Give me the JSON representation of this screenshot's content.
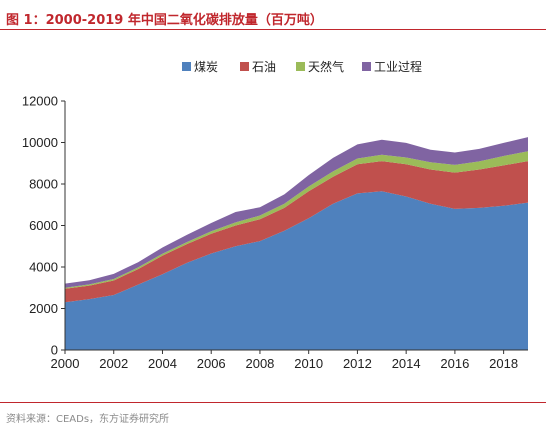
{
  "figure": {
    "title": "图 1：2000-2019 年中国二氧化碳排放量（百万吨）",
    "source": "资料来源：CEADs，东方证券研究所"
  },
  "chart_data": {
    "type": "area",
    "stacked": true,
    "title": "图 1：2000-2019 年中国二氧化碳排放量（百万吨）",
    "xlabel": "",
    "ylabel": "",
    "x": [
      2000,
      2001,
      2002,
      2003,
      2004,
      2005,
      2006,
      2007,
      2008,
      2009,
      2010,
      2011,
      2012,
      2013,
      2014,
      2015,
      2016,
      2017,
      2018,
      2019
    ],
    "xlim": [
      2000,
      2019
    ],
    "ylim": [
      0,
      12000
    ],
    "xticks": [
      2000,
      2002,
      2004,
      2006,
      2008,
      2010,
      2012,
      2014,
      2016,
      2018
    ],
    "yticks": [
      0,
      2000,
      4000,
      6000,
      8000,
      10000,
      12000
    ],
    "grid": false,
    "legend_position": "top",
    "series": [
      {
        "name": "煤炭",
        "color": "#4f81bd",
        "values": [
          2300,
          2450,
          2650,
          3150,
          3650,
          4200,
          4650,
          5000,
          5250,
          5750,
          6350,
          7050,
          7550,
          7650,
          7400,
          7050,
          6800,
          6850,
          6950,
          7100
        ]
      },
      {
        "name": "石油",
        "color": "#c0504d",
        "values": [
          650,
          650,
          700,
          750,
          900,
          900,
          950,
          1000,
          1050,
          1100,
          1300,
          1300,
          1400,
          1450,
          1550,
          1650,
          1750,
          1850,
          1950,
          2000
        ]
      },
      {
        "name": "天然气",
        "color": "#9bbb59",
        "values": [
          50,
          60,
          70,
          80,
          90,
          100,
          120,
          150,
          180,
          200,
          230,
          260,
          280,
          310,
          330,
          350,
          370,
          390,
          450,
          480
        ]
      },
      {
        "name": "工业过程",
        "color": "#8064a2",
        "values": [
          200,
          200,
          250,
          250,
          300,
          350,
          400,
          500,
          400,
          450,
          550,
          650,
          680,
          720,
          700,
          600,
          600,
          600,
          630,
          680
        ]
      }
    ]
  }
}
